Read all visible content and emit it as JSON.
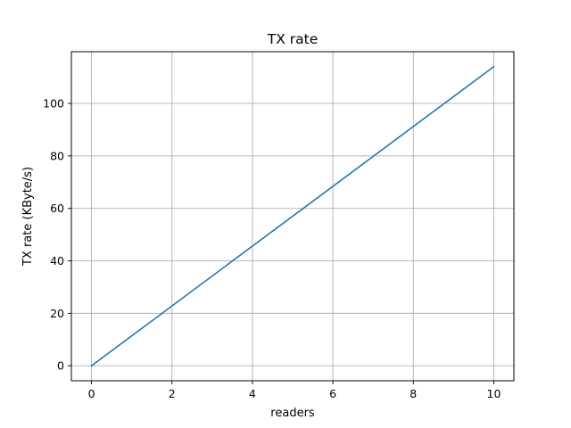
{
  "chart_data": {
    "type": "line",
    "title": "TX rate",
    "xlabel": "readers",
    "ylabel": "TX rate (KByte/s)",
    "xlim": [
      -0.5,
      10.5
    ],
    "ylim": [
      -5.7,
      119.7
    ],
    "xticks": [
      0,
      2,
      4,
      6,
      8,
      10
    ],
    "yticks": [
      0,
      20,
      40,
      60,
      80,
      100
    ],
    "grid": true,
    "series": [
      {
        "color": "#1f77b4",
        "x": [
          0,
          10
        ],
        "y": [
          0,
          114
        ]
      }
    ]
  }
}
